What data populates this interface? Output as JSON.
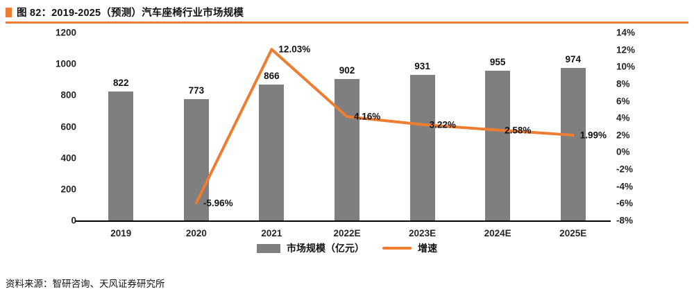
{
  "header": {
    "title": "图 82：2019-2025（预测）汽车座椅行业市场规模",
    "accent_color": "#ED7D31"
  },
  "chart_data": {
    "type": "bar",
    "subtype": "combo-bar-line",
    "categories": [
      "2019",
      "2020",
      "2021",
      "2022E",
      "2023E",
      "2024E",
      "2025E"
    ],
    "series": [
      {
        "name": "市场规模（亿元）",
        "type": "bar",
        "color": "#7F7F7F",
        "axis": "left",
        "values": [
          822,
          773,
          866,
          902,
          931,
          955,
          974
        ],
        "labels": [
          "822",
          "773",
          "866",
          "902",
          "931",
          "955",
          "974"
        ]
      },
      {
        "name": "增速",
        "type": "line",
        "color": "#ED7D31",
        "axis": "right",
        "values": [
          null,
          -5.96,
          12.03,
          4.16,
          3.22,
          2.58,
          1.99
        ],
        "labels": [
          "",
          "-5.96%",
          "12.03%",
          "4.16%",
          "3.22%",
          "2.58%",
          "1.99%"
        ]
      }
    ],
    "left_axis": {
      "min": 0,
      "max": 1200,
      "step": 200,
      "ticks": [
        "0",
        "200",
        "400",
        "600",
        "800",
        "1000",
        "1200"
      ]
    },
    "right_axis": {
      "min": -8,
      "max": 14,
      "step": 2,
      "ticks": [
        "-8%",
        "-6%",
        "-4%",
        "-2%",
        "0%",
        "2%",
        "4%",
        "6%",
        "8%",
        "10%",
        "12%",
        "14%"
      ]
    },
    "grid": "off",
    "legend_position": "bottom"
  },
  "legend": {
    "bar_label": "市场规模（亿元）",
    "line_label": "增速"
  },
  "footer": {
    "source": "资料来源：智研咨询、天风证券研究所"
  }
}
